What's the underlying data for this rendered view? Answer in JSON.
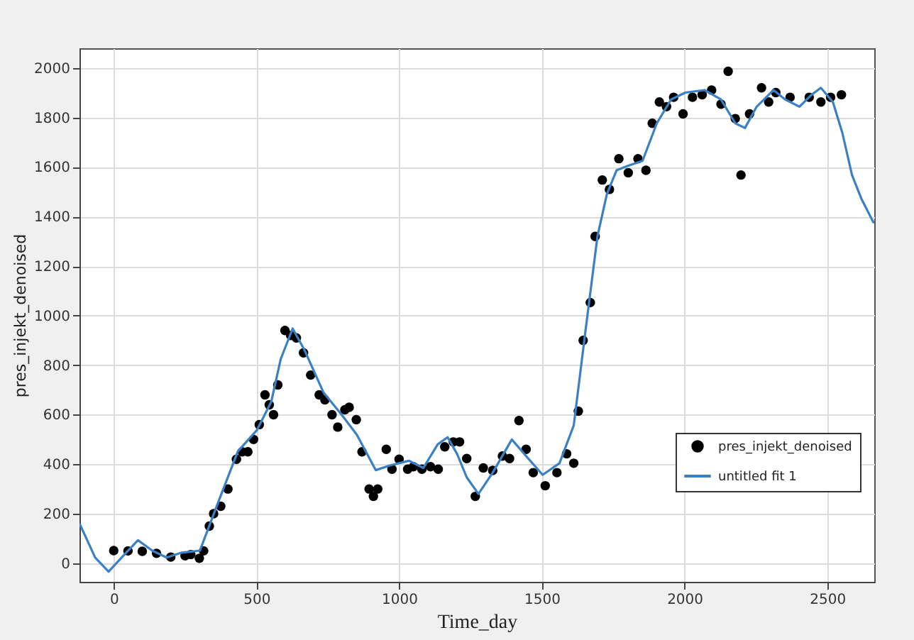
{
  "chart_data": {
    "type": "line",
    "xlabel": "Time_day",
    "ylabel": "pres_injekt_denoised",
    "xlim": [
      -120,
      2665
    ],
    "xticks": [
      0,
      500,
      1000,
      1500,
      2000,
      2500
    ],
    "ylim": [
      -75,
      2080
    ],
    "yticks": [
      0,
      200,
      400,
      600,
      800,
      1000,
      1200,
      1400,
      1600,
      1800,
      2000
    ],
    "grid": true,
    "legend": "bottom right",
    "series": [
      {
        "name": "pres_injekt_denoised",
        "type": "scatter",
        "marker": "circle",
        "color": "#000000",
        "x": [
          0,
          50,
          100,
          150,
          200,
          250,
          270,
          300,
          315,
          335,
          350,
          375,
          400,
          430,
          450,
          470,
          490,
          510,
          530,
          545,
          560,
          575,
          600,
          620,
          640,
          665,
          690,
          720,
          740,
          765,
          785,
          810,
          825,
          850,
          870,
          895,
          910,
          925,
          955,
          975,
          1000,
          1030,
          1050,
          1080,
          1110,
          1137,
          1160,
          1190,
          1212,
          1237,
          1267,
          1295,
          1328,
          1362,
          1387,
          1420,
          1445,
          1470,
          1512,
          1553,
          1587,
          1612,
          1628,
          1645,
          1670,
          1687,
          1712,
          1737,
          1770,
          1803,
          1837,
          1865,
          1887,
          1912,
          1937,
          1962,
          1995,
          2028,
          2062,
          2095,
          2128,
          2153,
          2178,
          2198,
          2228,
          2270,
          2295,
          2320,
          2370,
          2437,
          2478,
          2512,
          2550
        ],
        "values": [
          51,
          50,
          48,
          40,
          25,
          30,
          35,
          20,
          50,
          150,
          200,
          230,
          300,
          420,
          450,
          450,
          500,
          560,
          680,
          640,
          600,
          720,
          940,
          920,
          910,
          850,
          760,
          680,
          660,
          600,
          550,
          620,
          630,
          580,
          450,
          300,
          270,
          300,
          460,
          380,
          420,
          380,
          390,
          380,
          390,
          380,
          470,
          490,
          490,
          423,
          270,
          385,
          375,
          433,
          423,
          576,
          460,
          366,
          313,
          366,
          442,
          404,
          614,
          900,
          1053,
          1320,
          1548,
          1510,
          1634,
          1577,
          1634,
          1587,
          1777,
          1863,
          1844,
          1882,
          1815,
          1882,
          1892,
          1911,
          1854,
          1987,
          1796,
          1568,
          1815,
          1920,
          1863,
          1901,
          1882,
          1882,
          1863,
          1882,
          1892
        ]
      },
      {
        "name": "untitled fit 1",
        "color": "#3a80c4",
        "x": [
          -118,
          -65,
          -18,
          35,
          85,
          135,
          185,
          235,
          302,
          368,
          435,
          502,
          552,
          585,
          627,
          668,
          735,
          802,
          852,
          918,
          968,
          1035,
          1085,
          1135,
          1170,
          1203,
          1237,
          1278,
          1328,
          1395,
          1445,
          1503,
          1562,
          1612,
          1653,
          1695,
          1728,
          1762,
          1803,
          1853,
          1903,
          1953,
          2003,
          2070,
          2128,
          2178,
          2212,
          2253,
          2312,
          2353,
          2403,
          2445,
          2478,
          2520,
          2553,
          2587,
          2620,
          2662
        ],
        "values": [
          156,
          23,
          -34,
          32,
          93,
          51,
          23,
          42,
          51,
          252,
          452,
          538,
          652,
          824,
          948,
          862,
          690,
          595,
          519,
          376,
          395,
          414,
          385,
          480,
          509,
          442,
          347,
          280,
          366,
          500,
          433,
          357,
          404,
          557,
          938,
          1320,
          1491,
          1587,
          1606,
          1625,
          1777,
          1873,
          1901,
          1911,
          1873,
          1777,
          1758,
          1844,
          1911,
          1873,
          1844,
          1892,
          1920,
          1863,
          1739,
          1568,
          1472,
          1377
        ]
      }
    ]
  }
}
